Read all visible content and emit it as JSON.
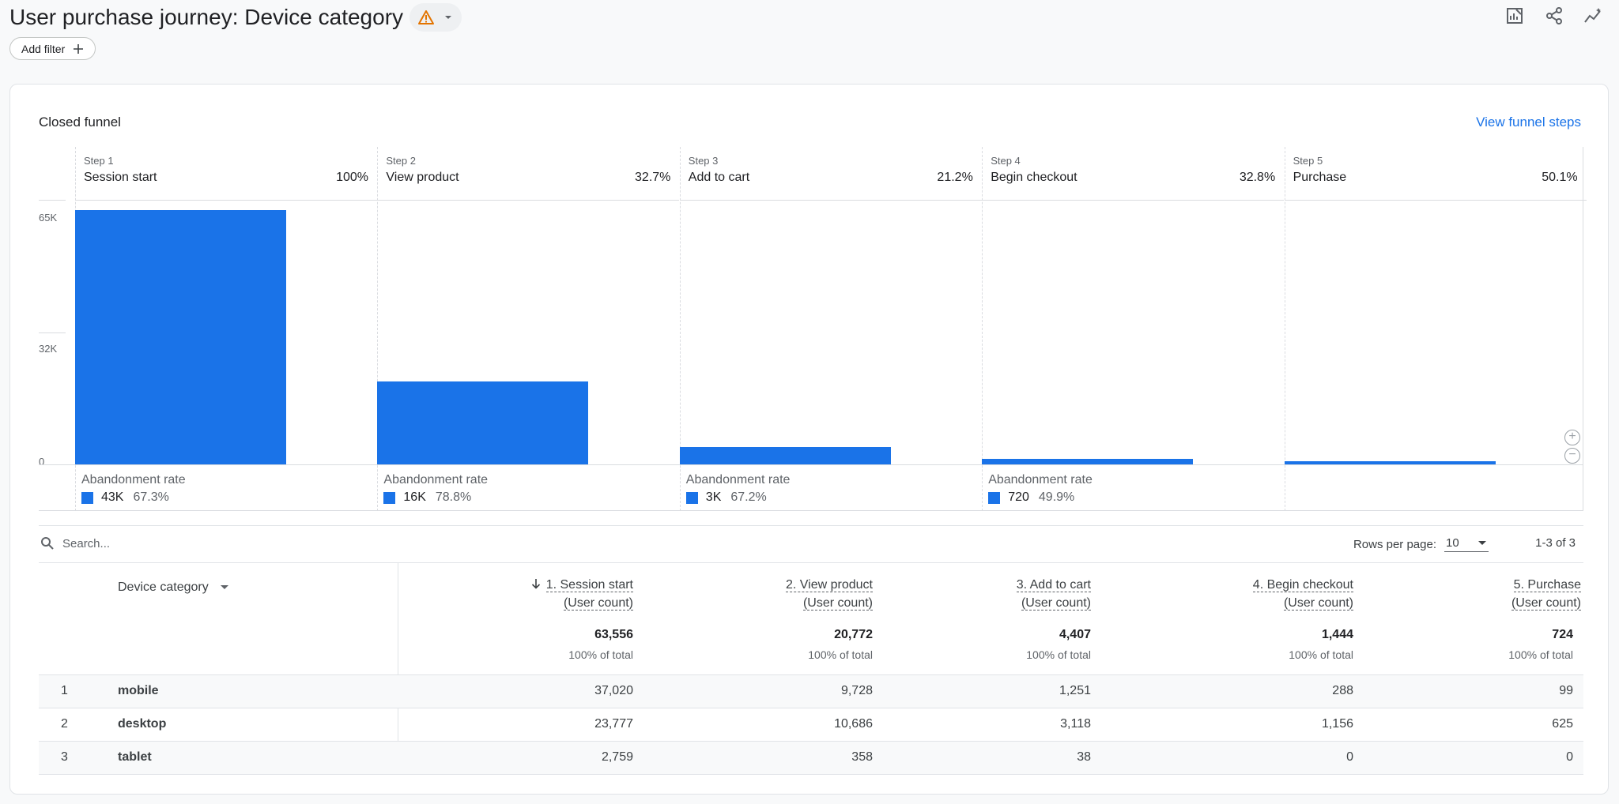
{
  "header": {
    "title": "User purchase journey: Device category"
  },
  "filter": {
    "add_label": "Add filter"
  },
  "card": {
    "title": "Closed funnel",
    "view_steps_link": "View funnel steps"
  },
  "chart_data": {
    "type": "bar",
    "title": "",
    "y_ticks": [
      "65K",
      "32K",
      "0"
    ],
    "ylim": [
      0,
      65000
    ],
    "categories": [
      "Session start",
      "View product",
      "Add to cart",
      "Begin checkout",
      "Purchase"
    ],
    "values": [
      63556,
      20772,
      4407,
      1444,
      724
    ],
    "steps": [
      {
        "num": "Step 1",
        "name": "Session start",
        "pct": "100%",
        "abandon_label": "Abandonment rate",
        "abandon_count": "43K",
        "abandon_rate": "67.3%"
      },
      {
        "num": "Step 2",
        "name": "View product",
        "pct": "32.7%",
        "abandon_label": "Abandonment rate",
        "abandon_count": "16K",
        "abandon_rate": "78.8%"
      },
      {
        "num": "Step 3",
        "name": "Add to cart",
        "pct": "21.2%",
        "abandon_label": "Abandonment rate",
        "abandon_count": "3K",
        "abandon_rate": "67.2%"
      },
      {
        "num": "Step 4",
        "name": "Begin checkout",
        "pct": "32.8%",
        "abandon_label": "Abandonment rate",
        "abandon_count": "720",
        "abandon_rate": "49.9%"
      },
      {
        "num": "Step 5",
        "name": "Purchase",
        "pct": "50.1%"
      }
    ],
    "bar_color": "#1a73e8"
  },
  "toolbar": {
    "search_placeholder": "Search...",
    "rows_label": "Rows per page:",
    "rows_value": "10",
    "pager": "1-3 of 3"
  },
  "table": {
    "dimension_header": "Device category",
    "columns": [
      {
        "line1": "1. Session start",
        "line2": "(User count)",
        "total": "63,556",
        "total_sub": "100% of total"
      },
      {
        "line1": "2. View product",
        "line2": "(User count)",
        "total": "20,772",
        "total_sub": "100% of total"
      },
      {
        "line1": "3. Add to cart",
        "line2": "(User count)",
        "total": "4,407",
        "total_sub": "100% of total"
      },
      {
        "line1": "4. Begin checkout",
        "line2": "(User count)",
        "total": "1,444",
        "total_sub": "100% of total"
      },
      {
        "line1": "5. Purchase",
        "line2": "(User count)",
        "total": "724",
        "total_sub": "100% of total"
      }
    ],
    "rows": [
      {
        "num": "1",
        "device": "mobile",
        "values": [
          "37,020",
          "9,728",
          "1,251",
          "288",
          "99"
        ]
      },
      {
        "num": "2",
        "device": "desktop",
        "values": [
          "23,777",
          "10,686",
          "3,118",
          "1,156",
          "625"
        ]
      },
      {
        "num": "3",
        "device": "tablet",
        "values": [
          "2,759",
          "358",
          "38",
          "0",
          "0"
        ]
      }
    ]
  },
  "colors": {
    "accent": "#1a73e8",
    "warning": "#e37400"
  }
}
